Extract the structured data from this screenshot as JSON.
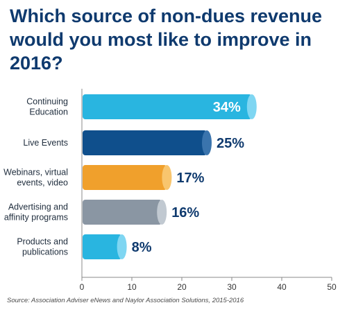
{
  "title_lines": [
    "Which source of non-dues revenue",
    "would you most like to improve in",
    "2016?"
  ],
  "source": "Source: Association Adviser eNews and Naylor Association Solutions, 2015-2016",
  "chart_data": {
    "type": "bar",
    "orientation": "horizontal",
    "categories": [
      [
        "Continuing",
        "Education"
      ],
      [
        "Live Events"
      ],
      [
        "Webinars, virtual",
        "events, video"
      ],
      [
        "Advertising and",
        "affinity programs"
      ],
      [
        "Products and",
        "publications"
      ]
    ],
    "values": [
      34,
      25,
      17,
      16,
      8
    ],
    "value_labels": [
      "34%",
      "25%",
      "17%",
      "16%",
      "8%"
    ],
    "label_inside": [
      true,
      false,
      false,
      false,
      false
    ],
    "colors": [
      "#29b5e0",
      "#0f4f8c",
      "#f0a02c",
      "#8a96a3",
      "#29b5e0"
    ],
    "cap_colors": [
      "#7fd6f2",
      "#3a74ad",
      "#f8c56e",
      "#c1c9d1",
      "#7fd6f2"
    ],
    "xlim": [
      0,
      50
    ],
    "xticks": [
      0,
      10,
      20,
      30,
      40,
      50
    ],
    "xlabel": "",
    "ylabel": ""
  }
}
